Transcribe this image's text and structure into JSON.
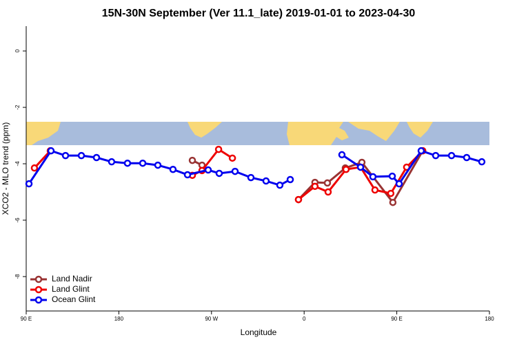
{
  "chart_data": {
    "type": "line",
    "title": "15N-30N September (Ver 11.1_late)   2019-01-01 to 2023-04-30",
    "xlabel": "Longitude",
    "ylabel": "XCO2 - MLO trend (ppm)",
    "xlim": [
      90,
      540
    ],
    "ylim": [
      -9.22,
      0.88
    ],
    "xticks": [
      {
        "value": 90,
        "label": "90 E"
      },
      {
        "value": 180,
        "label": "180"
      },
      {
        "value": 270,
        "label": "90 W"
      },
      {
        "value": 360,
        "label": "0"
      },
      {
        "value": 450,
        "label": "90 E"
      },
      {
        "value": 540,
        "label": "180"
      }
    ],
    "yticks": [
      0,
      -2,
      -4,
      -6,
      -8
    ],
    "legend": "bottom-left",
    "series": [
      {
        "name": "Land Nadir",
        "color": "#993333",
        "x": [
          251.4,
          260.8,
          null,
          354.5,
          370.5,
          382.6,
          400.0,
          416.1,
          446.2,
          475.2
        ],
        "values": [
          -3.88,
          -4.05,
          null,
          -5.27,
          -4.66,
          -4.68,
          -4.15,
          -3.95,
          -5.37,
          -3.54
        ]
      },
      {
        "name": "Land Glint",
        "color": "#ee0000",
        "x": [
          98.0,
          113.4,
          null,
          251.4,
          260.8,
          276.9,
          290.3,
          null,
          354.5,
          370.5,
          383.3,
          400.7,
          414.8,
          428.8,
          444.2,
          459.6,
          475.2
        ],
        "values": [
          -4.15,
          -3.54,
          null,
          -4.41,
          -4.24,
          -3.49,
          -3.8,
          null,
          -5.27,
          -4.8,
          -5.0,
          -4.2,
          -4.12,
          -4.93,
          -5.05,
          -4.12,
          -3.54
        ]
      },
      {
        "name": "Ocean Glint",
        "color": "#0000ee",
        "x": [
          92.7,
          114.1,
          128.2,
          143.6,
          158.3,
          173.0,
          188.4,
          203.2,
          217.9,
          232.6,
          246.7,
          266.8,
          277.5,
          292.9,
          308.3,
          323.0,
          336.4,
          346.5,
          null,
          396.7,
          414.8,
          426.8,
          445.6,
          452.3,
          473.7,
          487.8,
          503.2,
          517.9,
          532.6
        ],
        "values": [
          -4.71,
          -3.54,
          -3.71,
          -3.71,
          -3.78,
          -3.93,
          -3.98,
          -3.98,
          -4.05,
          -4.2,
          -4.39,
          -4.22,
          -4.34,
          -4.27,
          -4.49,
          -4.61,
          -4.76,
          -4.56,
          null,
          -3.68,
          -4.12,
          -4.46,
          -4.44,
          -4.71,
          -3.54,
          -3.71,
          -3.71,
          -3.78,
          -3.93
        ]
      }
    ]
  }
}
